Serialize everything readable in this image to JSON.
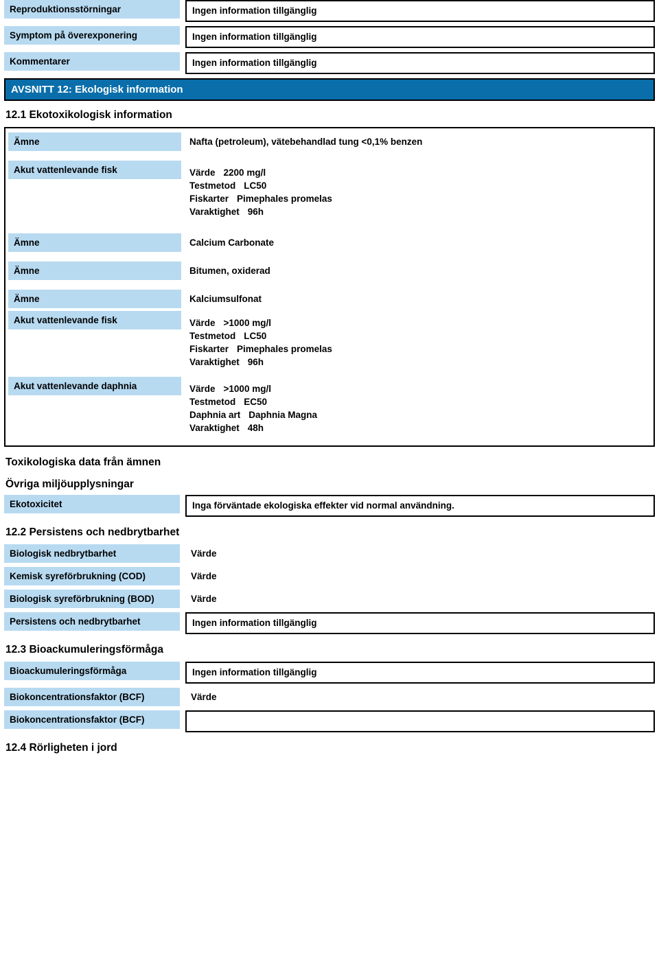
{
  "colors": {
    "label_bg": "#b7daf1",
    "section_bg": "#0a6eab",
    "section_fg": "#ffffff",
    "border": "#000000",
    "text": "#000000"
  },
  "top": {
    "rows": [
      {
        "label": "Reproduktionsstörningar",
        "value": "Ingen information tillgänglig"
      },
      {
        "label": "Symptom på överexponering",
        "value": "Ingen information tillgänglig"
      },
      {
        "label": "Kommentarer",
        "value": "Ingen information tillgänglig"
      }
    ]
  },
  "section12": {
    "title": "AVSNITT 12: Ekologisk information",
    "s12_1": {
      "title": "12.1 Ekotoxikologisk information",
      "groups": [
        {
          "label": "Ämne",
          "value": "Nafta (petroleum), vätebehandlad tung <0,1% benzen"
        },
        {
          "label": "Akut vattenlevande fisk",
          "kvs": [
            {
              "k": "Värde",
              "v": "2200 mg/l"
            },
            {
              "k": "Testmetod",
              "v": "LC50"
            },
            {
              "k": "Fiskarter",
              "v": "Pimephales promelas"
            },
            {
              "k": "Varaktighet",
              "v": "96h"
            }
          ]
        },
        {
          "label": "Ämne",
          "value": "Calcium Carbonate"
        },
        {
          "label": "Ämne",
          "value": "Bitumen, oxiderad"
        },
        {
          "label": "Ämne",
          "value": "Kalciumsulfonat"
        },
        {
          "label": "Akut vattenlevande fisk",
          "kvs": [
            {
              "k": "Värde",
              "v": ">1000 mg/l"
            },
            {
              "k": "Testmetod",
              "v": "LC50"
            },
            {
              "k": "Fiskarter",
              "v": "Pimephales promelas"
            },
            {
              "k": "Varaktighet",
              "v": "96h"
            }
          ]
        },
        {
          "label": "Akut vattenlevande daphnia",
          "kvs": [
            {
              "k": "Värde",
              "v": ">1000 mg/l"
            },
            {
              "k": "Testmetod",
              "v": "EC50"
            },
            {
              "k": "Daphnia art",
              "v": "Daphnia Magna"
            },
            {
              "k": "Varaktighet",
              "v": "48h"
            }
          ]
        }
      ]
    },
    "tox_heading": "Toxikologiska data från ämnen",
    "env_heading": "Övriga miljöupplysningar",
    "ekotox_label": "Ekotoxicitet",
    "ekotox_value": "Inga förväntade ekologiska effekter vid normal användning.",
    "s12_2": {
      "title": "12.2 Persistens och nedbrytbarhet",
      "rows": [
        {
          "label": "Biologisk nedbrytbarhet",
          "value": "Värde"
        },
        {
          "label": "Kemisk syreförbrukning (COD)",
          "value": "Värde"
        },
        {
          "label": "Biologisk syreförbrukning (BOD)",
          "value": "Värde"
        }
      ],
      "boxed": {
        "label": "Persistens och nedbrytbarhet",
        "value": "Ingen information tillgänglig"
      }
    },
    "s12_3": {
      "title": "12.3 Bioackumuleringsförmåga",
      "boxed": {
        "label": "Bioackumuleringsförmåga",
        "value": "Ingen information tillgänglig"
      },
      "rows": [
        {
          "label": "Biokoncentrationsfaktor (BCF)",
          "value": "Värde"
        },
        {
          "label": "Biokoncentrationsfaktor (BCF)",
          "value": ""
        }
      ]
    },
    "s12_4": {
      "title": "12.4 Rörligheten i jord"
    }
  }
}
